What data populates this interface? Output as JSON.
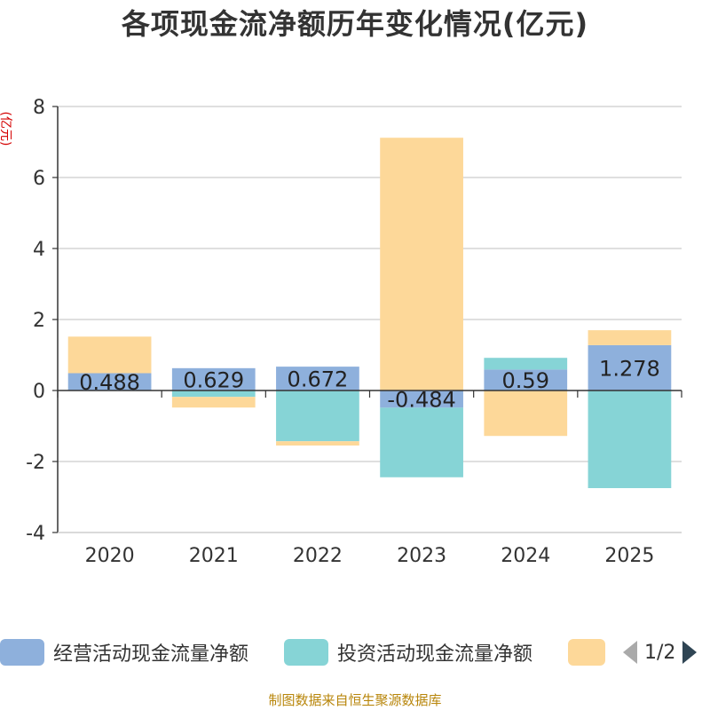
{
  "chart_data": {
    "type": "bar",
    "stacked": true,
    "title": "各项现金流净额历年变化情况(亿元)",
    "ylabel": "(亿元)",
    "xlabel": "",
    "categories": [
      "2020",
      "2021",
      "2022",
      "2023",
      "2024",
      "2025"
    ],
    "ylim": [
      -4,
      8
    ],
    "yticks": [
      -4,
      -2,
      0,
      2,
      4,
      6,
      8
    ],
    "series": [
      {
        "name": "经营活动现金流量净额",
        "color": "#8eb0dc",
        "values": [
          0.488,
          0.629,
          0.672,
          -0.484,
          0.59,
          1.278
        ],
        "labels": [
          "0.488",
          "0.629",
          "0.672",
          "-0.484",
          "0.59",
          "1.278"
        ]
      },
      {
        "name": "投资活动现金流量净额",
        "color": "#86d4d6",
        "values": [
          0,
          -0.18,
          -1.43,
          -1.96,
          0.33,
          -2.75
        ]
      },
      {
        "name": "",
        "color": "#fdd899",
        "values": [
          1.03,
          -0.3,
          -0.12,
          7.12,
          -1.28,
          0.42
        ]
      }
    ]
  },
  "legend": {
    "page": "1/2"
  },
  "footer": {
    "source": "制图数据来自恒生聚源数据库"
  }
}
